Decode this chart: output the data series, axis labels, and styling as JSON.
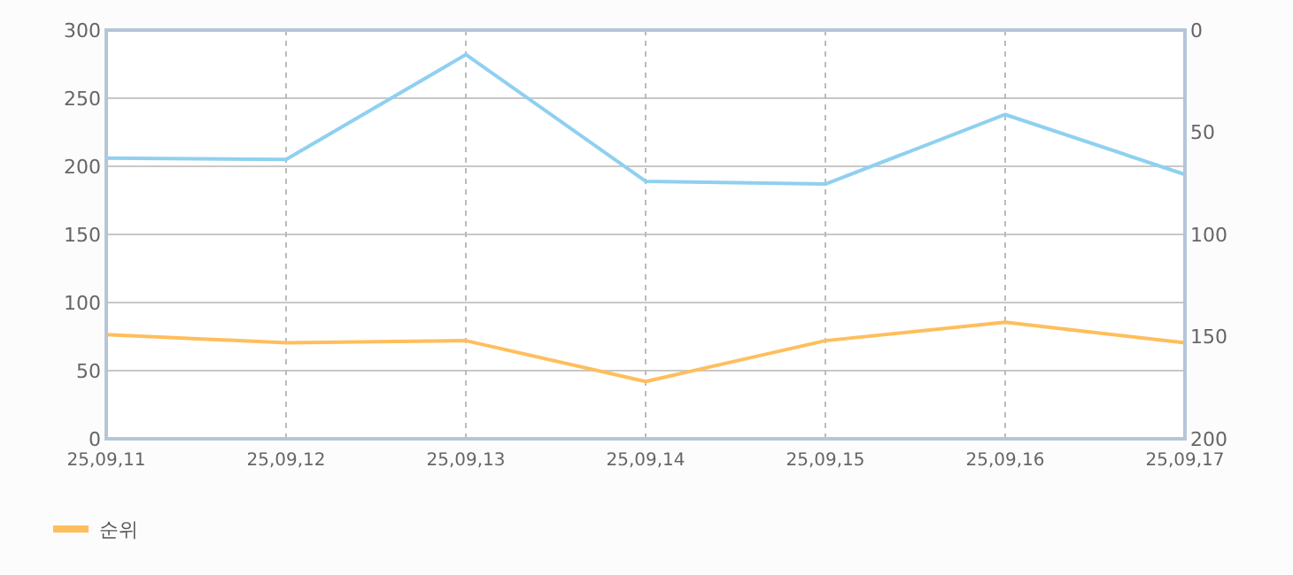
{
  "chart_data": {
    "type": "line",
    "categories": [
      "25,09,11",
      "25,09,12",
      "25,09,13",
      "25,09,14",
      "25,09,15",
      "25,09,16",
      "25,09,17"
    ],
    "series": [
      {
        "color": "#8fd0f0",
        "values": [
          206,
          205,
          282,
          189,
          187,
          238,
          194
        ]
      },
      {
        "name": "순위",
        "color": "#ffbe5c",
        "axis": "y2",
        "values": [
          149,
          153,
          152,
          172,
          152,
          143,
          153
        ]
      }
    ],
    "ylim": [
      0,
      300
    ],
    "yticks": [
      0,
      50,
      100,
      150,
      200,
      250,
      300
    ],
    "y2lim": [
      200,
      0
    ],
    "y2ticks": [
      0,
      50,
      100,
      150,
      200
    ],
    "grid": true,
    "legend": "bottom left",
    "marker": "none",
    "line_style": "solid"
  }
}
